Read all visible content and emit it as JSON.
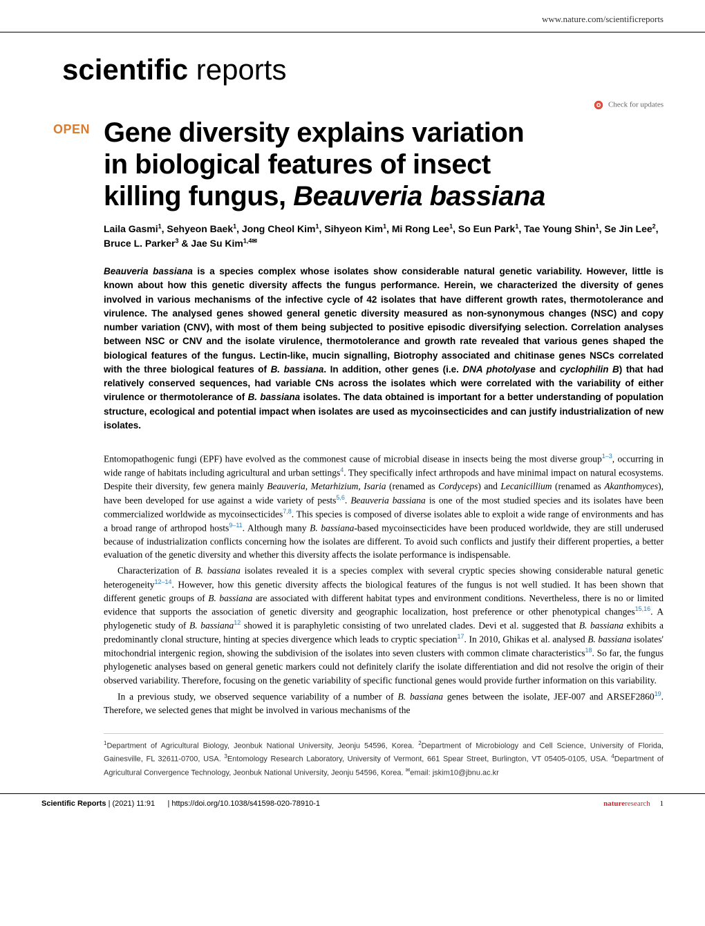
{
  "header": {
    "website": "www.nature.com/scientificreports"
  },
  "journal": {
    "logo_prefix": "scientific",
    "logo_suffix": "reports"
  },
  "updates": {
    "label": "Check for updates",
    "icon_fill": "#e74c3c",
    "icon_stroke": "#c0392b"
  },
  "badge": {
    "text": "OPEN",
    "color": "#d97b2d"
  },
  "article": {
    "title_line1": "Gene diversity explains variation",
    "title_line2": "in biological features of insect",
    "title_line3_a": "killing fungus, ",
    "title_line3_b": "Beauveria bassiana",
    "authors_html": "Laila Gasmi<sup>1</sup>, Sehyeon Baek<sup>1</sup>, Jong Cheol Kim<sup>1</sup>, Sihyeon Kim<sup>1</sup>, Mi Rong Lee<sup>1</sup>, So Eun Park<sup>1</sup>, Tae Young Shin<sup>1</sup>, Se Jin Lee<sup>2</sup>, Bruce L. Parker<sup>3</sup> & Jae Su Kim<sup>1,4✉</sup>"
  },
  "abstract": {
    "text_parts": [
      {
        "italic": true,
        "text": "Beauveria bassiana"
      },
      {
        "italic": false,
        "text": " is a species complex whose isolates show considerable natural genetic variability. However, little is known about how this genetic diversity affects the fungus performance. Herein, we characterized the diversity of genes involved in various mechanisms of the infective cycle of 42 isolates that have different growth rates, thermotolerance and virulence. The analysed genes showed general genetic diversity measured as non-synonymous changes (NSC) and copy number variation (CNV), with most of them being subjected to positive episodic diversifying selection. Correlation analyses between NSC or CNV and the isolate virulence, thermotolerance and growth rate revealed that various genes shaped the biological features of the fungus. Lectin-like, mucin signalling, Biotrophy associated and chitinase genes NSCs correlated with the three biological features of "
      },
      {
        "italic": true,
        "text": "B. bassiana"
      },
      {
        "italic": false,
        "text": ". In addition, other genes (i.e. "
      },
      {
        "italic": true,
        "text": "DNA photolyase"
      },
      {
        "italic": false,
        "text": " and "
      },
      {
        "italic": true,
        "text": "cyclophilin B"
      },
      {
        "italic": false,
        "text": ") that had relatively conserved sequences, had variable CNs across the isolates which were correlated with the variability of either virulence or thermotolerance of "
      },
      {
        "italic": true,
        "text": "B. bassiana"
      },
      {
        "italic": false,
        "text": " isolates. The data obtained is important for a better understanding of population structure, ecological and potential impact when isolates are used as mycoinsecticides and can justify industrialization of new isolates."
      }
    ]
  },
  "body": {
    "para1": "Entomopathogenic fungi (EPF) have evolved as the commonest cause of microbial disease in insects being the most diverse group<sup class=\"ref\">1–3</sup>, occurring in wide range of habitats including agricultural and urban settings<sup class=\"ref\">4</sup>. They specifically infect arthropods and have minimal impact on natural ecosystems. Despite their diversity, few genera mainly <span class=\"species\">Beauveria</span>, <span class=\"species\">Metarhizium</span>, <span class=\"species\">Isaria</span> (renamed as <span class=\"species\">Cordyceps</span>) and <span class=\"species\">Lecanicillium</span> (renamed as <span class=\"species\">Akanthomyces</span>), have been developed for use against a wide variety of pests<sup class=\"ref\">5,6</sup>. <span class=\"species\">Beauveria bassiana</span> is one of the most studied species and its isolates have been commercialized worldwide as mycoinsecticides<sup class=\"ref\">7,8</sup>. This species is composed of diverse isolates able to exploit a wide range of environments and has a broad range of arthropod hosts<sup class=\"ref\">9–11</sup>. Although many <span class=\"species\">B. bassiana</span>-based mycoinsecticides have been produced worldwide, they are still underused because of industrialization conflicts concerning how the isolates are different. To avoid such conflicts and justify their different properties, a better evaluation of the genetic diversity and whether this diversity affects the isolate performance is indispensable.",
    "para2": "Characterization of <span class=\"species\">B. bassiana</span> isolates revealed it is a species complex with several cryptic species showing considerable natural genetic heterogeneity<sup class=\"ref\">12–14</sup>. However, how this genetic diversity affects the biological features of the fungus is not well studied. It has been shown that different genetic groups of <span class=\"species\">B. bassiana</span> are associated with different habitat types and environment conditions. Nevertheless, there is no or limited evidence that supports the association of genetic diversity and geographic localization, host preference or other phenotypical changes<sup class=\"ref\">15,16</sup>. A phylogenetic study of <span class=\"species\">B. bassiana</span><sup class=\"ref\">12</sup> showed it is paraphyletic consisting of two unrelated clades. Devi et al. suggested that <span class=\"species\">B. bassiana</span> exhibits a predominantly clonal structure, hinting at species divergence which leads to cryptic speciation<sup class=\"ref\">17</sup>. In 2010, Ghikas et al. analysed <span class=\"species\">B. bassiana</span> isolates' mitochondrial intergenic region, showing the subdivision of the isolates into seven clusters with common climate characteristics<sup class=\"ref\">18</sup>. So far, the fungus phylogenetic analyses based on general genetic markers could not definitely clarify the isolate differentiation and did not resolve the origin of their observed variability. Therefore, focusing on the genetic variability of specific functional genes would provide further information on this variability.",
    "para3": "In a previous study, we observed sequence variability of a number of <span class=\"species\">B. bassiana</span> genes between the isolate, JEF-007 and ARSEF2860<sup class=\"ref\">19</sup>. Therefore, we selected genes that might be involved in various mechanisms of the"
  },
  "affiliations": {
    "text": "<sup>1</sup>Department of Agricultural Biology, Jeonbuk National University, Jeonju 54596, Korea. <sup>2</sup>Department of Microbiology and Cell Science, University of Florida, Gainesville, FL 32611-0700, USA. <sup>3</sup>Entomology Research Laboratory, University of Vermont, 661 Spear Street, Burlington, VT 05405-0105, USA. <sup>4</sup>Department of Agricultural Convergence Technology, Jeonbuk National University, Jeonju 54596, Korea. <sup>✉</sup>email: jskim10@jbnu.ac.kr"
  },
  "footer": {
    "journal": "Scientific Reports",
    "citation": "(2021) 11:91",
    "doi": "| https://doi.org/10.1038/s41598-020-78910-1",
    "publisher_prefix": "nature",
    "publisher_suffix": "research",
    "publisher_color": "#d0242a",
    "page_num": "1"
  }
}
